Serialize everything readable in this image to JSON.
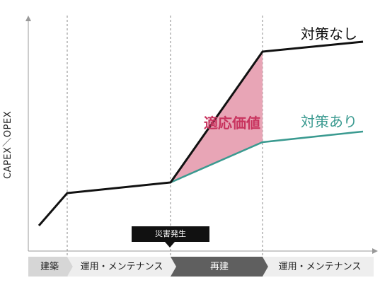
{
  "diagram": {
    "y_axis_label": "CAPEX／OPEX",
    "series": [
      {
        "name": "対策なし",
        "color": "#111111"
      },
      {
        "name": "対策あり",
        "color": "#3a9a90"
      }
    ],
    "value_label": "適応価値",
    "value_color": "#e8a5b6",
    "event_label": "災害発生",
    "phases": [
      {
        "label": "建築",
        "fill": "#d6d6d6",
        "text": "#222222"
      },
      {
        "label": "運用・メンテナンス",
        "fill": "#eeeeee",
        "text": "#222222"
      },
      {
        "label": "再建",
        "fill": "#5f5f5f",
        "text": "#ffffff"
      },
      {
        "label": "運用・メンテナンス",
        "fill": "#eeeeee",
        "text": "#222222"
      }
    ]
  }
}
